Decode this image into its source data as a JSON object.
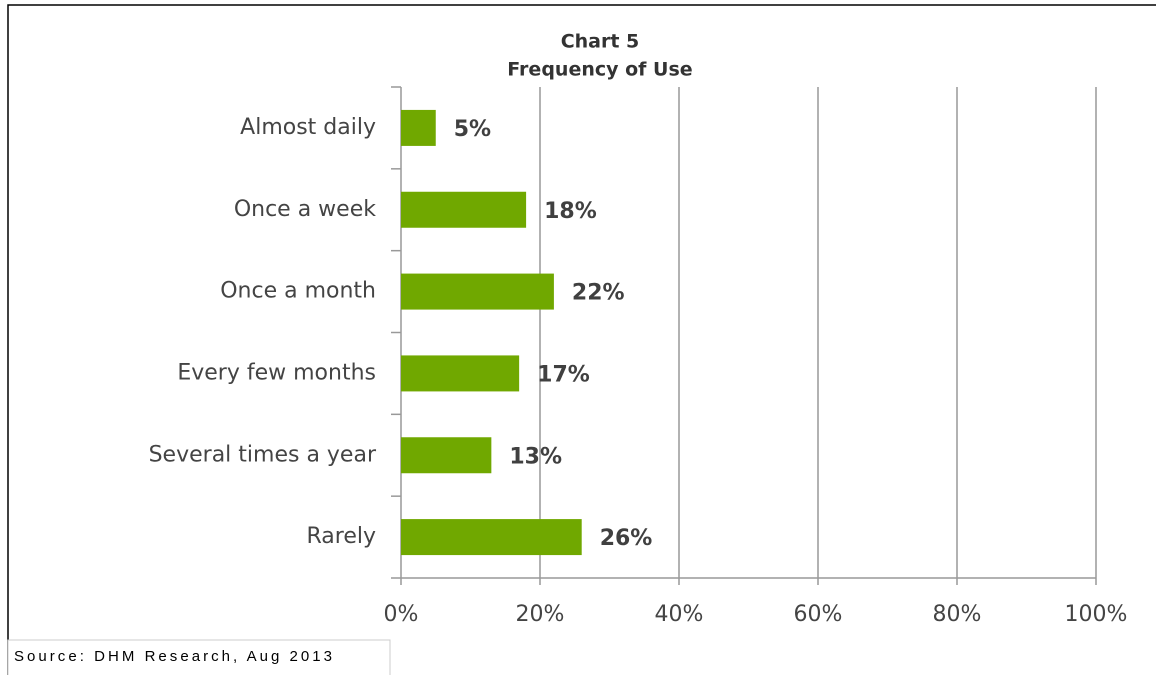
{
  "chart_data": {
    "type": "bar",
    "orientation": "horizontal",
    "title": "Chart 5",
    "subtitle": "Frequency of Use",
    "categories": [
      "Almost daily",
      "Once a week",
      "Once a month",
      "Every few months",
      "Several times a year",
      "Rarely"
    ],
    "values": [
      5,
      18,
      22,
      17,
      13,
      26
    ],
    "value_labels": [
      "5%",
      "18%",
      "22%",
      "17%",
      "13%",
      "26%"
    ],
    "color": "#70a800",
    "xlim": [
      0,
      100
    ],
    "xticks": [
      {
        "value": 0,
        "label": "0%"
      },
      {
        "value": 20,
        "label": "20%"
      },
      {
        "value": 40,
        "label": "40%"
      },
      {
        "value": 60,
        "label": "60%"
      },
      {
        "value": 80,
        "label": "80%"
      },
      {
        "value": 100,
        "label": "100%"
      }
    ],
    "grid": true,
    "source": "Source: DHM Research, Aug 2013"
  }
}
